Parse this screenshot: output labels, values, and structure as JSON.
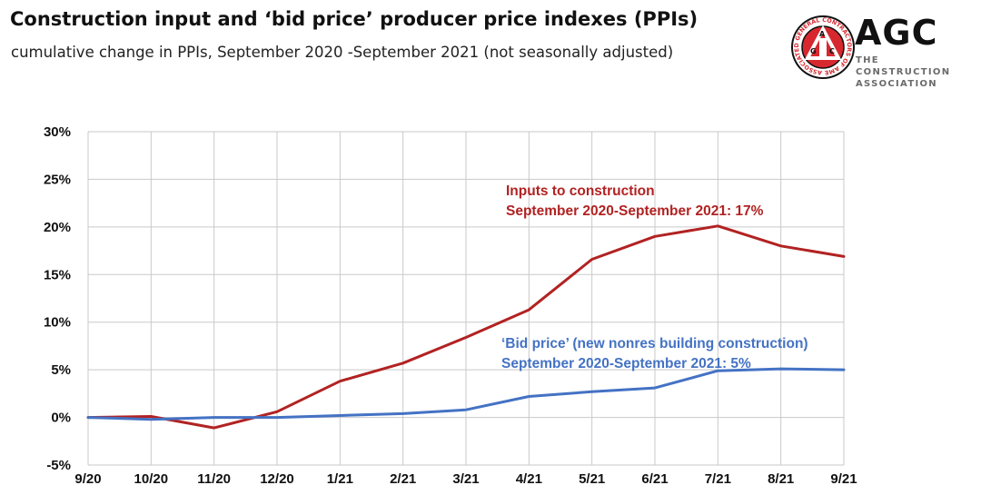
{
  "header": {
    "title": "Construction input and ‘bid price’ producer price indexes (PPIs)",
    "subtitle": "cumulative change in PPIs, September 2020 -September 2021 (not seasonally adjusted)"
  },
  "logo": {
    "name": "AGC",
    "tagline": "THE CONSTRUCTION ASSOCIATION",
    "seal_text": "ASSOCIATED GENERAL CONTRACTORS OF AMERICA",
    "seal_letters": "AGC",
    "colors": {
      "red": "#d7282f",
      "dark": "#111111",
      "gray": "#6b6b6b"
    }
  },
  "chart_data": {
    "type": "line",
    "title": "Construction input and ‘bid price’ producer price indexes (PPIs)",
    "subtitle": "cumulative change in PPIs, September 2020 -September 2021 (not seasonally adjusted)",
    "xlabel": "",
    "ylabel": "",
    "categories": [
      "9/20",
      "10/20",
      "11/20",
      "12/20",
      "1/21",
      "2/21",
      "3/21",
      "4/21",
      "5/21",
      "6/21",
      "7/21",
      "8/21",
      "9/21"
    ],
    "ylim": [
      -5,
      30
    ],
    "yticks": [
      -5,
      0,
      5,
      10,
      15,
      20,
      25,
      30
    ],
    "ytick_labels": [
      "-5%",
      "0%",
      "5%",
      "10%",
      "15%",
      "20%",
      "25%",
      "30%"
    ],
    "grid": true,
    "legend": "none",
    "series": [
      {
        "name": "Inputs to construction",
        "color": "#b22222",
        "values": [
          0,
          0.1,
          -1.1,
          0.6,
          3.8,
          5.7,
          8.4,
          11.3,
          16.6,
          19.0,
          20.1,
          18.0,
          16.9
        ]
      },
      {
        "name": "‘Bid price’ (new nonres building construction)",
        "color": "#4472c4",
        "values": [
          0,
          -0.2,
          0.0,
          0.0,
          0.2,
          0.4,
          0.8,
          2.2,
          2.7,
          3.1,
          4.9,
          5.1,
          5.0
        ]
      }
    ],
    "annotations": [
      {
        "series": 0,
        "color": "#b22222",
        "lines": [
          "Inputs to construction",
          "September 2020-September 2021: 17%"
        ]
      },
      {
        "series": 1,
        "color": "#4472c4",
        "lines": [
          "‘Bid price’ (new nonres building  construction)",
          "September 2020-September 2021: 5%"
        ]
      }
    ]
  }
}
